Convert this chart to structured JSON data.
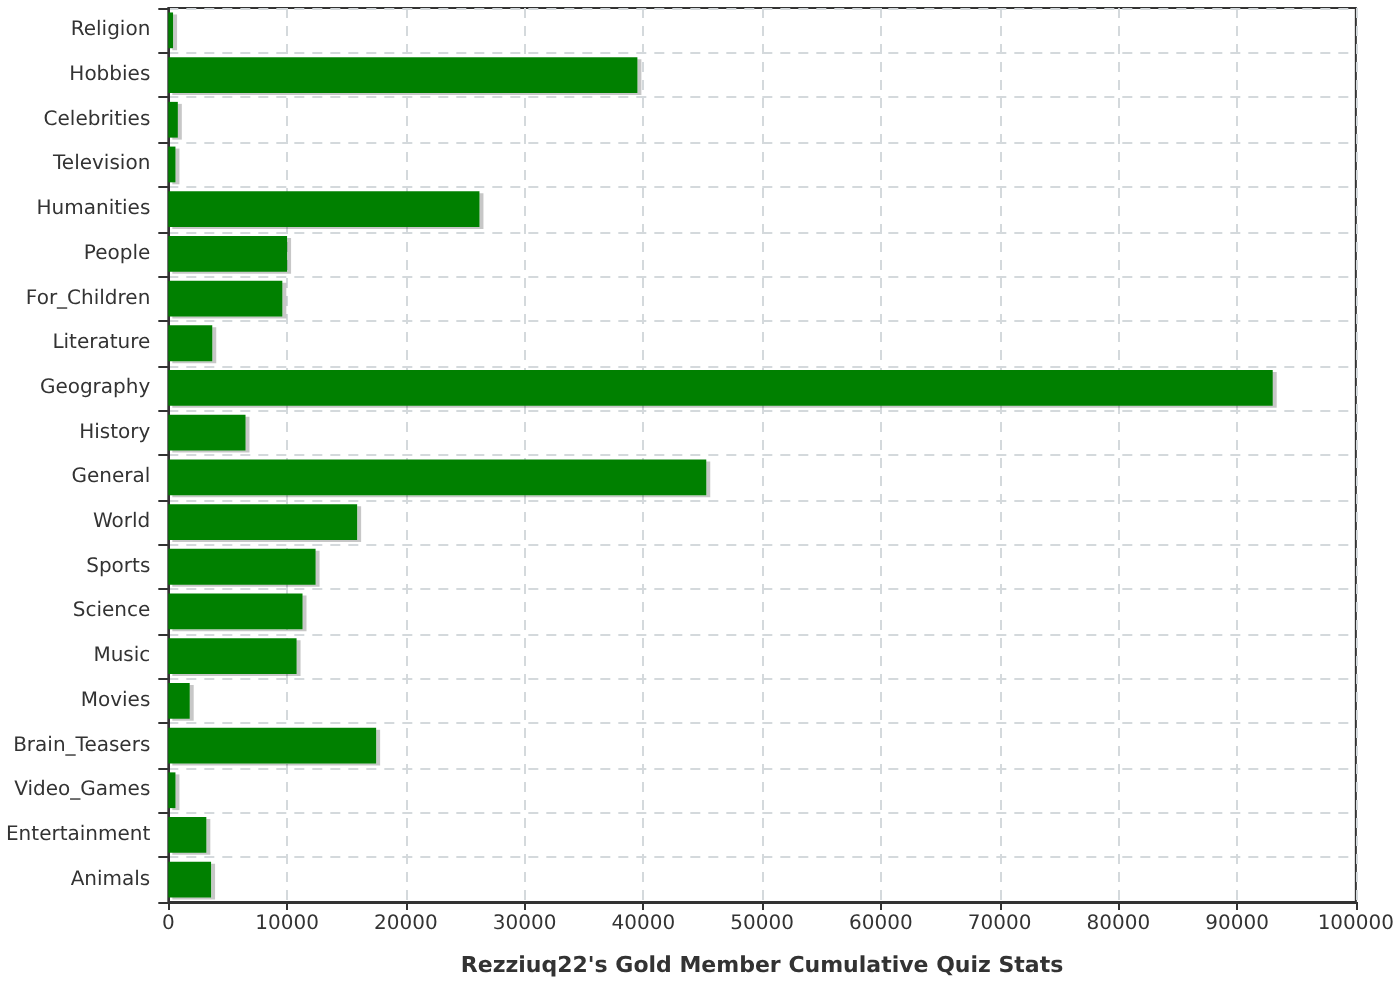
{
  "chart_data": {
    "type": "bar",
    "orientation": "horizontal",
    "xlabel": "Rezziuq22's Gold Member Cumulative Quiz Stats",
    "categories": [
      "Religion",
      "Hobbies",
      "Celebrities",
      "Television",
      "Humanities",
      "People",
      "For_Children",
      "Literature",
      "Geography",
      "History",
      "General",
      "World",
      "Sports",
      "Science",
      "Music",
      "Movies",
      "Brain_Teasers",
      "Video_Games",
      "Entertainment",
      "Animals"
    ],
    "values": [
      400,
      39500,
      800,
      600,
      26200,
      10000,
      9600,
      3700,
      93000,
      6500,
      45300,
      15900,
      12400,
      11300,
      10800,
      1800,
      17500,
      600,
      3200,
      3600
    ],
    "color": "#008000",
    "xlim": [
      0,
      100000
    ],
    "xticks": [
      0,
      10000,
      20000,
      30000,
      40000,
      50000,
      60000,
      70000,
      80000,
      90000,
      100000
    ],
    "grid": true
  }
}
